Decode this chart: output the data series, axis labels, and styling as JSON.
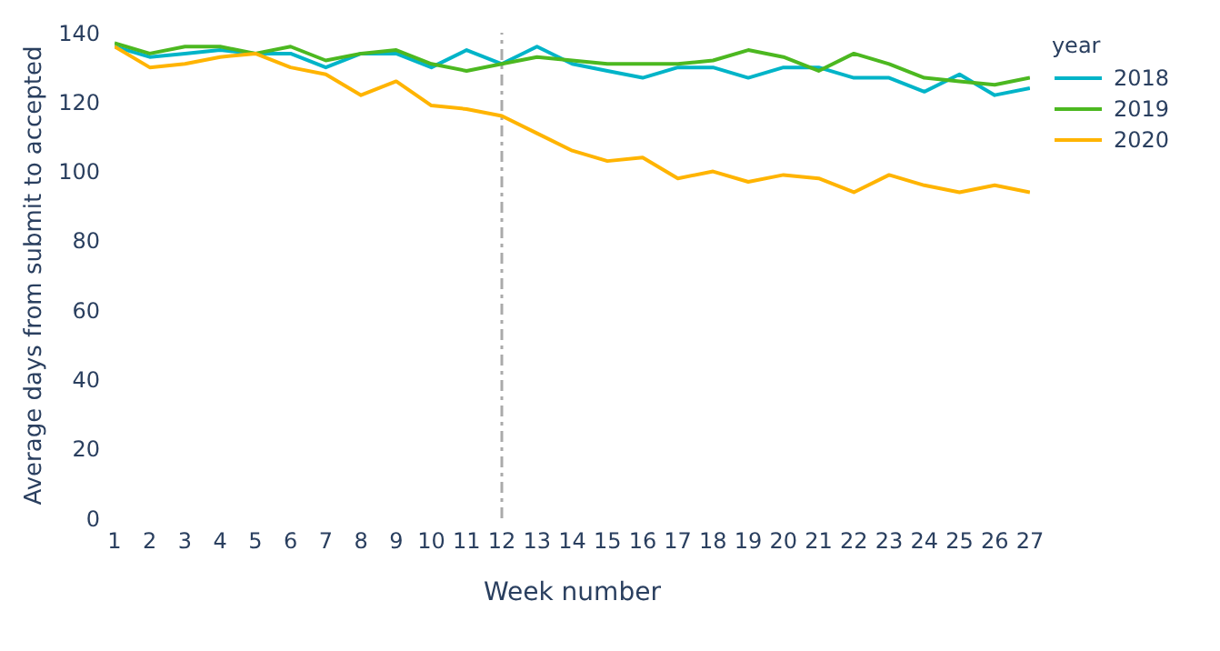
{
  "chart_data": {
    "type": "line",
    "xlabel": "Week number",
    "ylabel": "Average days from submit to accepted",
    "legend_title": "year",
    "x": [
      1,
      2,
      3,
      4,
      5,
      6,
      7,
      8,
      9,
      10,
      11,
      12,
      13,
      14,
      15,
      16,
      17,
      18,
      19,
      20,
      21,
      22,
      23,
      24,
      25,
      26,
      27
    ],
    "series": [
      {
        "name": "2018",
        "color": "#00b4c8",
        "values": [
          136,
          133,
          134,
          135,
          134,
          134,
          130,
          134,
          134,
          130,
          135,
          131,
          136,
          131,
          129,
          127,
          130,
          130,
          127,
          130,
          130,
          127,
          127,
          123,
          128,
          122,
          124
        ]
      },
      {
        "name": "2019",
        "color": "#4cb820",
        "values": [
          137,
          134,
          136,
          136,
          134,
          136,
          132,
          134,
          135,
          131,
          129,
          131,
          133,
          132,
          131,
          131,
          131,
          132,
          135,
          133,
          129,
          134,
          131,
          127,
          126,
          125,
          127
        ]
      },
      {
        "name": "2020",
        "color": "#ffb400",
        "values": [
          136,
          130,
          131,
          133,
          134,
          130,
          128,
          122,
          126,
          119,
          118,
          116,
          111,
          106,
          103,
          104,
          98,
          100,
          97,
          99,
          98,
          94,
          99,
          96,
          94,
          96,
          94
        ]
      }
    ],
    "xlim": [
      1,
      27
    ],
    "xticks": [
      1,
      2,
      3,
      4,
      5,
      6,
      7,
      8,
      9,
      10,
      11,
      12,
      13,
      14,
      15,
      16,
      17,
      18,
      19,
      20,
      21,
      22,
      23,
      24,
      25,
      26,
      27
    ],
    "ylim": [
      0,
      140
    ],
    "yticks": [
      0,
      20,
      40,
      60,
      80,
      100,
      120,
      140
    ],
    "ref_lines": [
      {
        "axis": "x",
        "value": 12,
        "color": "#aaaaaa",
        "line_style": "dashdot"
      }
    ],
    "grid": false,
    "legend": "top right",
    "marker": "none",
    "line_style": "solid"
  }
}
